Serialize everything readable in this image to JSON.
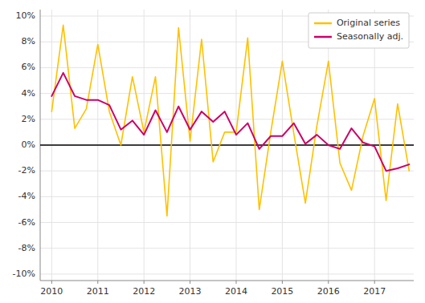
{
  "chart_data": {
    "type": "line",
    "x": [
      2010.0,
      2010.25,
      2010.5,
      2010.75,
      2011.0,
      2011.25,
      2011.5,
      2011.75,
      2012.0,
      2012.25,
      2012.5,
      2012.75,
      2013.0,
      2013.25,
      2013.5,
      2013.75,
      2014.0,
      2014.25,
      2014.5,
      2014.75,
      2015.0,
      2015.25,
      2015.5,
      2015.75,
      2016.0,
      2016.25,
      2016.5,
      2016.75,
      2017.0,
      2017.25,
      2017.5,
      2017.75
    ],
    "series": [
      {
        "name": "Original series",
        "color": "#FFC000",
        "values": [
          0.026,
          0.093,
          0.013,
          0.028,
          0.078,
          0.026,
          0.0,
          0.053,
          0.01,
          0.053,
          -0.055,
          0.091,
          0.003,
          0.082,
          -0.013,
          0.01,
          0.01,
          0.083,
          -0.05,
          0.01,
          0.065,
          0.009,
          -0.045,
          0.015,
          0.065,
          -0.014,
          -0.035,
          0.007,
          0.036,
          -0.043,
          0.032,
          -0.02
        ]
      },
      {
        "name": "Seasonally adj.",
        "color": "#CC0066",
        "values": [
          0.038,
          0.056,
          0.038,
          0.035,
          0.035,
          0.031,
          0.012,
          0.019,
          0.008,
          0.027,
          0.01,
          0.03,
          0.012,
          0.026,
          0.018,
          0.026,
          0.008,
          0.017,
          -0.003,
          0.007,
          0.007,
          0.017,
          0.001,
          0.008,
          0.0,
          -0.003,
          0.013,
          0.002,
          -0.001,
          -0.02,
          -0.018,
          -0.015
        ]
      }
    ],
    "xlim": [
      2009.75,
      2017.85
    ],
    "ylim": [
      -0.105,
      0.105
    ],
    "xticks": [
      2010,
      2011,
      2012,
      2013,
      2014,
      2015,
      2016,
      2017
    ],
    "yticks": [
      {
        "value": -0.1,
        "label": "-10%"
      },
      {
        "value": -0.08,
        "label": "-8%"
      },
      {
        "value": -0.06,
        "label": "-6%"
      },
      {
        "value": -0.04,
        "label": "-4%"
      },
      {
        "value": -0.02,
        "label": "-2%"
      },
      {
        "value": 0.0,
        "label": "0%"
      },
      {
        "value": 0.02,
        "label": "2%"
      },
      {
        "value": 0.04,
        "label": "4%"
      },
      {
        "value": 0.06,
        "label": "6%"
      },
      {
        "value": 0.08,
        "label": "8%"
      },
      {
        "value": 0.1,
        "label": "10%"
      }
    ],
    "grid": true,
    "legend": "top-right"
  }
}
